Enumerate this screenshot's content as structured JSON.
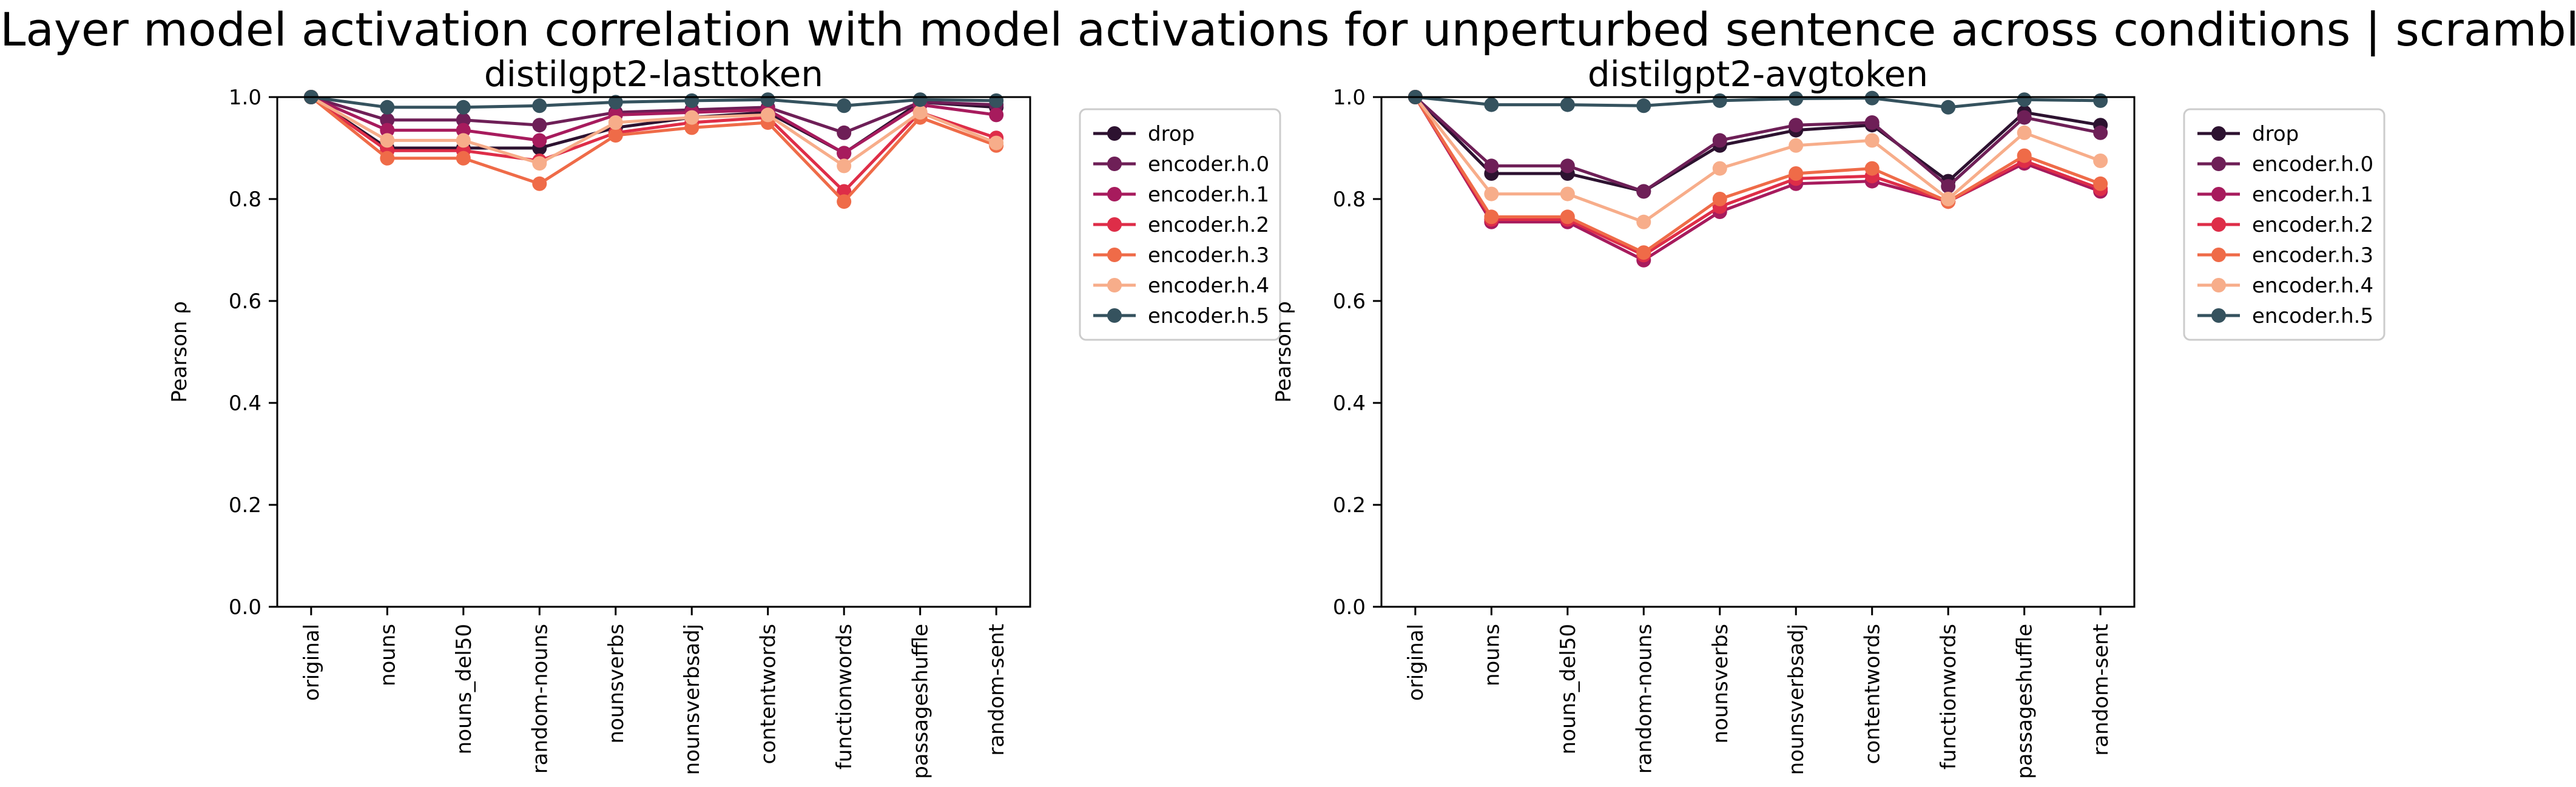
{
  "suptitle": "Layer model activation correlation with model activations for unperturbed sentence across conditions | scrambled",
  "chart_data": [
    {
      "type": "line",
      "title": "distilgpt2-lasttoken",
      "xlabel": "",
      "ylabel": "Pearson ρ",
      "ylim": [
        0,
        1.0
      ],
      "yticks": [
        "0.0",
        "0.2",
        "0.4",
        "0.6",
        "0.8",
        "1.0"
      ],
      "ytick_values": [
        0,
        0.2,
        0.4,
        0.6,
        0.8,
        1.0
      ],
      "grid": false,
      "legend_position": "outside-right",
      "categories": [
        "original",
        "nouns",
        "nouns_del50",
        "random-nouns",
        "nounsverbs",
        "nounsverbsadj",
        "contentwords",
        "functionwords",
        "passageshuffle",
        "random-sent"
      ],
      "series": [
        {
          "name": "drop",
          "color": "#2d1230",
          "values": [
            1.0,
            0.9,
            0.9,
            0.9,
            0.94,
            0.96,
            0.97,
            0.89,
            0.99,
            0.98
          ]
        },
        {
          "name": "encoder.h.0",
          "color": "#6e1f57",
          "values": [
            1.0,
            0.955,
            0.955,
            0.945,
            0.97,
            0.975,
            0.98,
            0.93,
            0.99,
            0.985
          ]
        },
        {
          "name": "encoder.h.1",
          "color": "#a71b5d",
          "values": [
            1.0,
            0.935,
            0.935,
            0.915,
            0.965,
            0.97,
            0.975,
            0.89,
            0.985,
            0.965
          ]
        },
        {
          "name": "encoder.h.2",
          "color": "#de2d48",
          "values": [
            1.0,
            0.895,
            0.895,
            0.875,
            0.93,
            0.95,
            0.96,
            0.815,
            0.97,
            0.92
          ]
        },
        {
          "name": "encoder.h.3",
          "color": "#ef6b48",
          "values": [
            1.0,
            0.88,
            0.88,
            0.83,
            0.925,
            0.94,
            0.95,
            0.795,
            0.96,
            0.905
          ]
        },
        {
          "name": "encoder.h.4",
          "color": "#f7ad8a",
          "values": [
            1.0,
            0.915,
            0.915,
            0.87,
            0.95,
            0.96,
            0.965,
            0.865,
            0.97,
            0.91
          ]
        },
        {
          "name": "encoder.h.5",
          "color": "#35525e",
          "values": [
            1.0,
            0.98,
            0.98,
            0.983,
            0.99,
            0.993,
            0.995,
            0.983,
            0.995,
            0.993
          ]
        }
      ]
    },
    {
      "type": "line",
      "title": "distilgpt2-avgtoken",
      "xlabel": "",
      "ylabel": "Pearson ρ",
      "ylim": [
        0,
        1.0
      ],
      "yticks": [
        "0.0",
        "0.2",
        "0.4",
        "0.6",
        "0.8",
        "1.0"
      ],
      "ytick_values": [
        0,
        0.2,
        0.4,
        0.6,
        0.8,
        1.0
      ],
      "grid": false,
      "legend_position": "outside-right",
      "categories": [
        "original",
        "nouns",
        "nouns_del50",
        "random-nouns",
        "nounsverbs",
        "nounsverbsadj",
        "contentwords",
        "functionwords",
        "passageshuffle",
        "random-sent"
      ],
      "series": [
        {
          "name": "drop",
          "color": "#2d1230",
          "values": [
            1.0,
            0.85,
            0.85,
            0.815,
            0.905,
            0.935,
            0.945,
            0.835,
            0.97,
            0.945
          ]
        },
        {
          "name": "encoder.h.0",
          "color": "#6e1f57",
          "values": [
            1.0,
            0.865,
            0.865,
            0.815,
            0.915,
            0.945,
            0.95,
            0.825,
            0.96,
            0.93
          ]
        },
        {
          "name": "encoder.h.1",
          "color": "#a71b5d",
          "values": [
            1.0,
            0.755,
            0.755,
            0.68,
            0.775,
            0.83,
            0.835,
            0.795,
            0.87,
            0.815
          ]
        },
        {
          "name": "encoder.h.2",
          "color": "#de2d48",
          "values": [
            1.0,
            0.76,
            0.76,
            0.69,
            0.785,
            0.84,
            0.845,
            0.795,
            0.875,
            0.82
          ]
        },
        {
          "name": "encoder.h.3",
          "color": "#ef6b48",
          "values": [
            1.0,
            0.765,
            0.765,
            0.695,
            0.8,
            0.85,
            0.86,
            0.795,
            0.885,
            0.83
          ]
        },
        {
          "name": "encoder.h.4",
          "color": "#f7ad8a",
          "values": [
            1.0,
            0.81,
            0.81,
            0.755,
            0.86,
            0.905,
            0.915,
            0.8,
            0.93,
            0.875
          ]
        },
        {
          "name": "encoder.h.5",
          "color": "#35525e",
          "values": [
            1.0,
            0.985,
            0.985,
            0.983,
            0.993,
            0.997,
            0.998,
            0.98,
            0.995,
            0.993
          ]
        }
      ]
    }
  ]
}
